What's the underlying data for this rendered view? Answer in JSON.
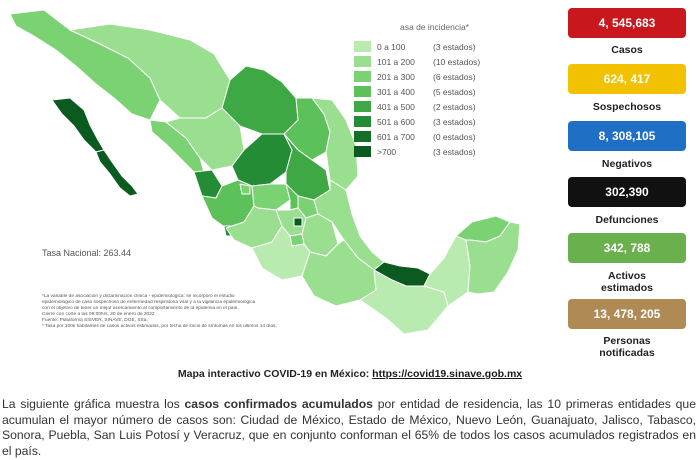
{
  "legend": {
    "title": "asa de incidencia*",
    "rows": [
      {
        "range": "0  a  100",
        "count": "(3 estados)",
        "color": "#b9ebb0"
      },
      {
        "range": "101 a  200",
        "count": "(10 estados)",
        "color": "#99df8f"
      },
      {
        "range": "201 a  300",
        "count": "(6 estados)",
        "color": "#7bd272"
      },
      {
        "range": "301 a  400",
        "count": "(5 estados)",
        "color": "#5dc159"
      },
      {
        "range": "401 a  500",
        "count": "(2 estados)",
        "color": "#3ea944"
      },
      {
        "range": "501 a  600",
        "count": "(3 estados)",
        "color": "#248c34"
      },
      {
        "range": "601 a  700",
        "count": "(0 estados)",
        "color": "#156f28"
      },
      {
        "range": ">700",
        "count": "(3 estados)",
        "color": "#0b5a1f"
      }
    ]
  },
  "tasa_nacional": "Tasa Nacional: 263.44",
  "notes": [
    "*La variable de asociación y dictaminación clínica - epidemiológica: se incorporó el estudio",
    "epidemiológico de caso sospechoso de enfermedad respiratoria viral y a la vigilancia epidemiológica",
    "con el objetivo de tener un mejor acercamiento al comportamiento de la epidemia en el país.",
    "Cierre con corte a las 09:00hrs, 20 de enero de 2022",
    "Fuente: Plataforma SISVER, SINAVE, DGE, SSa.",
    "* Tasa por 100k habitantes de casos activos estimados, por fecha de inicio de síntomas en los últimos 14 días."
  ],
  "stats": [
    {
      "value": "4, 545,683",
      "label": "Casos",
      "color": "#c8171d"
    },
    {
      "value": "624, 417",
      "label": "Sospechosos",
      "color": "#f2c200"
    },
    {
      "value": "8, 308,105",
      "label": "Negativos",
      "color": "#1f6fc5"
    },
    {
      "value": "302,390",
      "label": "Defunciones",
      "color": "#111111"
    },
    {
      "value": "342, 788",
      "label": "Activos estimados",
      "label_lines": [
        "Activos",
        "estimados"
      ],
      "color": "#6ab04c"
    },
    {
      "value": "13, 478, 205",
      "label": "Personas notificadas",
      "label_lines": [
        "Personas",
        "notificadas"
      ],
      "color": "#b08a55"
    }
  ],
  "map_caption": {
    "prefix": "Mapa interactivo COVID-19 en México: ",
    "link": "https://covid19.sinave.gob.mx"
  },
  "paragraph": {
    "part1": "La siguiente gráfica muestra los ",
    "bold": "casos confirmados acumulados",
    "part2": " por entidad de residencia, las 10 primeras entidades que acumulan el mayor número de casos son: Ciudad de México, Estado de México, Nuevo León, Guanajuato, Jalisco, Tabasco, Sonora, Puebla, San Luis Potosí y Veracruz, que en conjunto conforman el 65% de todos los casos acumulados registrados en el país."
  }
}
